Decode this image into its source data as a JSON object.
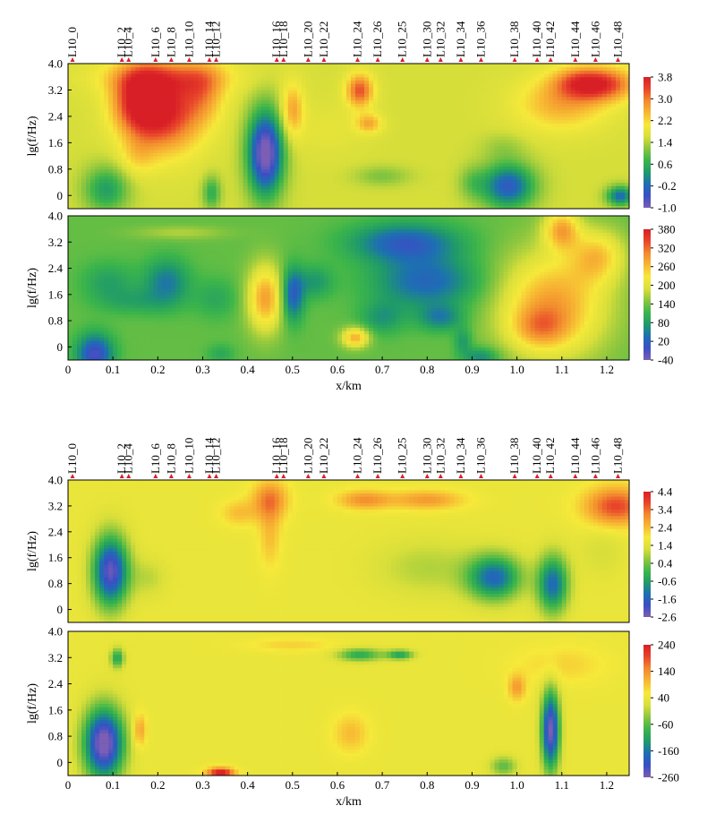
{
  "stations": [
    "L10_0",
    "L10_2",
    "L10_4",
    "L10_6",
    "L10_8",
    "L10_10",
    "L10_14",
    "L10_12",
    "L10_16",
    "L10_18",
    "L10_20",
    "L10_22",
    "L10_24",
    "L10_26",
    "L10_25",
    "L10_30",
    "L10_32",
    "L10_34",
    "L10_36",
    "L10_38",
    "L10_40",
    "L10_42",
    "L10_44",
    "L10_46",
    "L10_48"
  ],
  "station_x_km": [
    0.01,
    0.12,
    0.135,
    0.195,
    0.23,
    0.27,
    0.315,
    0.33,
    0.465,
    0.48,
    0.535,
    0.57,
    0.645,
    0.69,
    0.745,
    0.8,
    0.83,
    0.875,
    0.92,
    0.995,
    1.045,
    1.075,
    1.13,
    1.175,
    1.225
  ],
  "colors": {
    "scale": [
      "#7b5eb5",
      "#3a4fc4",
      "#1d6fb3",
      "#1f9a6a",
      "#3cb54a",
      "#8cc63f",
      "#d9df3a",
      "#f6e93a",
      "#f7b733",
      "#f28a2e",
      "#e8452b",
      "#d81f26"
    ],
    "station_marker": "#d81f26"
  },
  "chart_data": [
    {
      "type": "heatmap",
      "panel": "group1-top",
      "xlabel": "",
      "ylabel": "lg(f/Hz)",
      "xlim": [
        0,
        1.25
      ],
      "ylim": [
        -0.4,
        4.0
      ],
      "y_ticks": [
        "4.0",
        "3.2",
        "2.4",
        "1.6",
        "0.8",
        "0"
      ],
      "colorbar_ticks": [
        "3.8",
        "3.0",
        "2.2",
        "1.4",
        "0.6",
        "-0.2",
        "-1.0"
      ],
      "vmin": -1.0,
      "vmax": 3.8,
      "background": 1.6,
      "blobs": [
        [
          0.085,
          0.2,
          0.05,
          0.7,
          -1.2
        ],
        [
          0.16,
          2.9,
          0.06,
          1.0,
          2.0
        ],
        [
          0.22,
          2.5,
          0.08,
          1.2,
          1.8
        ],
        [
          0.22,
          3.6,
          0.15,
          0.5,
          0.9
        ],
        [
          0.155,
          1.2,
          0.04,
          0.6,
          0.5
        ],
        [
          0.3,
          3.2,
          0.05,
          0.9,
          0.9
        ],
        [
          0.32,
          0.1,
          0.02,
          0.5,
          -1.0
        ],
        [
          0.44,
          1.3,
          0.04,
          1.3,
          -2.8
        ],
        [
          0.5,
          2.6,
          0.025,
          0.8,
          1.1
        ],
        [
          0.65,
          3.2,
          0.03,
          0.5,
          1.7
        ],
        [
          0.67,
          2.2,
          0.03,
          0.3,
          1.0
        ],
        [
          0.7,
          0.6,
          0.06,
          0.3,
          -0.5
        ],
        [
          0.98,
          0.3,
          0.06,
          0.7,
          -2.0
        ],
        [
          0.97,
          1.5,
          0.05,
          0.4,
          -0.3
        ],
        [
          1.18,
          3.4,
          0.08,
          0.5,
          2.0
        ],
        [
          1.13,
          3.5,
          0.05,
          0.4,
          0.4
        ],
        [
          1.1,
          2.8,
          0.1,
          0.8,
          1.0
        ],
        [
          1.23,
          0.0,
          0.03,
          0.3,
          -1.8
        ],
        [
          0.9,
          0.4,
          0.03,
          0.5,
          -0.5
        ],
        [
          0.58,
          2.0,
          0.08,
          0.8,
          0.2
        ]
      ]
    },
    {
      "type": "heatmap",
      "panel": "group1-bottom",
      "xlabel": "x/km",
      "ylabel": "lg(f/Hz)",
      "xlim": [
        0,
        1.25
      ],
      "ylim": [
        -0.4,
        4.0
      ],
      "x_ticks": [
        "0",
        "0.1",
        "0.2",
        "0.3",
        "0.4",
        "0.5",
        "0.6",
        "0.7",
        "0.8",
        "0.9",
        "1.0",
        "1.1",
        "1.2"
      ],
      "y_ticks": [
        "4.0",
        "3.2",
        "2.4",
        "1.6",
        "0.8",
        "0"
      ],
      "colorbar_ticks": [
        "380",
        "320",
        "260",
        "200",
        "140",
        "80",
        "20",
        "-40"
      ],
      "vmin": -40,
      "vmax": 400,
      "background": 140,
      "blobs": [
        [
          0.06,
          -0.2,
          0.04,
          0.6,
          -150
        ],
        [
          0.09,
          2.0,
          0.06,
          0.6,
          -50
        ],
        [
          0.22,
          2.0,
          0.05,
          0.7,
          -90
        ],
        [
          0.15,
          1.4,
          0.08,
          0.4,
          -40
        ],
        [
          0.33,
          1.5,
          0.05,
          0.6,
          -40
        ],
        [
          0.44,
          1.5,
          0.04,
          1.0,
          160
        ],
        [
          0.5,
          1.6,
          0.025,
          0.8,
          -130
        ],
        [
          0.55,
          2.0,
          0.04,
          0.5,
          -60
        ],
        [
          0.75,
          3.2,
          0.12,
          0.6,
          -120
        ],
        [
          0.8,
          2.0,
          0.12,
          0.8,
          -110
        ],
        [
          0.83,
          0.9,
          0.05,
          0.4,
          -80
        ],
        [
          0.7,
          0.9,
          0.05,
          0.5,
          -60
        ],
        [
          0.64,
          0.3,
          0.03,
          0.3,
          150
        ],
        [
          0.92,
          -0.3,
          0.04,
          0.3,
          -80
        ],
        [
          1.08,
          1.3,
          0.12,
          1.6,
          160
        ],
        [
          1.1,
          3.6,
          0.04,
          0.6,
          140
        ],
        [
          1.18,
          2.8,
          0.06,
          0.8,
          110
        ],
        [
          1.05,
          0.6,
          0.06,
          0.6,
          80
        ],
        [
          0.25,
          3.5,
          0.1,
          0.2,
          40
        ],
        [
          0.34,
          -0.2,
          0.03,
          0.3,
          -40
        ],
        [
          0.88,
          0.2,
          0.02,
          0.4,
          -60
        ]
      ]
    },
    {
      "type": "heatmap",
      "panel": "group2-top",
      "xlabel": "",
      "ylabel": "lg(f/Hz)",
      "xlim": [
        0,
        1.25
      ],
      "ylim": [
        -0.4,
        4.0
      ],
      "y_ticks": [
        "4.0",
        "3.2",
        "2.4",
        "1.6",
        "0.8",
        "0"
      ],
      "colorbar_ticks": [
        "4.4",
        "3.4",
        "2.4",
        "1.4",
        "0.4",
        "-0.6",
        "-1.6",
        "-2.6"
      ],
      "vmin": -2.6,
      "vmax": 4.4,
      "background": 1.6,
      "blobs": [
        [
          0.095,
          1.2,
          0.04,
          1.1,
          -4.0
        ],
        [
          0.45,
          3.4,
          0.04,
          0.6,
          1.6
        ],
        [
          0.66,
          3.4,
          0.06,
          0.3,
          1.4
        ],
        [
          0.8,
          3.4,
          0.08,
          0.3,
          1.3
        ],
        [
          0.95,
          1.0,
          0.06,
          0.7,
          -3.0
        ],
        [
          1.08,
          0.8,
          0.035,
          0.9,
          -3.0
        ],
        [
          1.22,
          3.2,
          0.07,
          0.6,
          2.2
        ],
        [
          0.45,
          2.3,
          0.025,
          1.0,
          0.8
        ],
        [
          0.8,
          1.3,
          0.12,
          0.9,
          -0.7
        ],
        [
          0.38,
          3.0,
          0.04,
          0.4,
          0.8
        ],
        [
          0.18,
          1.0,
          0.04,
          0.6,
          -0.6
        ],
        [
          1.19,
          1.8,
          0.05,
          0.8,
          -0.4
        ]
      ]
    },
    {
      "type": "heatmap",
      "panel": "group2-bottom",
      "xlabel": "x/km",
      "ylabel": "lg(f/Hz)",
      "xlim": [
        0,
        1.25
      ],
      "ylim": [
        -0.4,
        4.0
      ],
      "x_ticks": [
        "0",
        "0.1",
        "0.2",
        "0.3",
        "0.4",
        "0.5",
        "0.6",
        "0.7",
        "0.8",
        "0.9",
        "1.0",
        "1.1",
        "1.2"
      ],
      "y_ticks": [
        "4.0",
        "3.2",
        "2.4",
        "1.6",
        "0.8",
        "0"
      ],
      "colorbar_ticks": [
        "240",
        "140",
        "40",
        "-60",
        "-160",
        "-260"
      ],
      "vmin": -260,
      "vmax": 240,
      "background": 40,
      "blobs": [
        [
          0.08,
          0.6,
          0.045,
          1.1,
          -320
        ],
        [
          0.11,
          3.2,
          0.015,
          0.3,
          -150
        ],
        [
          0.16,
          1.0,
          0.015,
          0.5,
          90
        ],
        [
          0.34,
          -0.3,
          0.03,
          0.15,
          220
        ],
        [
          1.075,
          1.0,
          0.02,
          1.2,
          -300
        ],
        [
          1.0,
          2.3,
          0.02,
          0.4,
          90
        ],
        [
          0.65,
          3.3,
          0.05,
          0.2,
          -140
        ],
        [
          0.74,
          3.3,
          0.03,
          0.15,
          -150
        ],
        [
          0.63,
          0.9,
          0.04,
          0.6,
          60
        ],
        [
          0.97,
          -0.1,
          0.03,
          0.3,
          -100
        ],
        [
          1.1,
          3.0,
          0.1,
          0.6,
          40
        ],
        [
          0.5,
          3.6,
          0.1,
          0.2,
          40
        ]
      ]
    }
  ]
}
